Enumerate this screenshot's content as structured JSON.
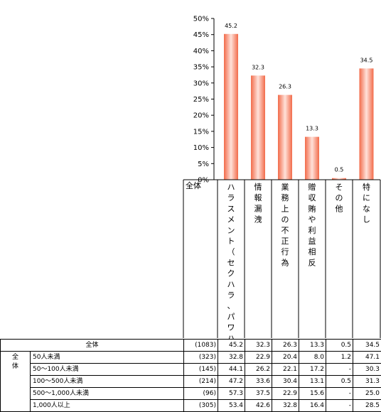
{
  "chart_data": {
    "type": "bar",
    "categories": [
      "全体",
      "ハラスメント（セクハラ、パワハラなど）",
      "情報漏洩",
      "業務上の不正行為",
      "贈収賄や利益相反",
      "その他",
      "特になし"
    ],
    "values": [
      null,
      45.2,
      32.3,
      26.3,
      13.3,
      0.5,
      34.5
    ],
    "data_labels": [
      "",
      "45.2",
      "32.3",
      "26.3",
      "13.3",
      "0.5",
      "34.5"
    ],
    "yticks": [
      "0%",
      "5%",
      "10%",
      "15%",
      "20%",
      "25%",
      "30%",
      "35%",
      "40%",
      "45%",
      "50%"
    ],
    "ylim": [
      0,
      50
    ],
    "title": "",
    "xlabel": "",
    "ylabel": "",
    "bar_colors": {
      "edge": "#f26b4a",
      "center": "#ffe2da"
    }
  },
  "table": {
    "total": {
      "label": "全体",
      "n": "(1083)",
      "values": [
        "45.2",
        "32.3",
        "26.3",
        "13.3",
        "0.5",
        "34.5"
      ]
    },
    "group_label": "全\n体",
    "rows": [
      {
        "label": "50人未満",
        "n": "(323)",
        "values": [
          "32.8",
          "22.9",
          "20.4",
          "8.0",
          "1.2",
          "47.1"
        ]
      },
      {
        "label": "50〜100人未満",
        "n": "(145)",
        "values": [
          "44.1",
          "26.2",
          "22.1",
          "17.2",
          "-",
          "30.3"
        ]
      },
      {
        "label": "100〜500人未満",
        "n": "(214)",
        "values": [
          "47.2",
          "33.6",
          "30.4",
          "13.1",
          "0.5",
          "31.3"
        ]
      },
      {
        "label": "500〜1,000人未満",
        "n": "(96)",
        "values": [
          "57.3",
          "37.5",
          "22.9",
          "15.6",
          "-",
          "25.0"
        ]
      },
      {
        "label": "1,000人以上",
        "n": "(305)",
        "values": [
          "53.4",
          "42.6",
          "32.8",
          "16.4",
          "-",
          "28.5"
        ]
      }
    ]
  }
}
